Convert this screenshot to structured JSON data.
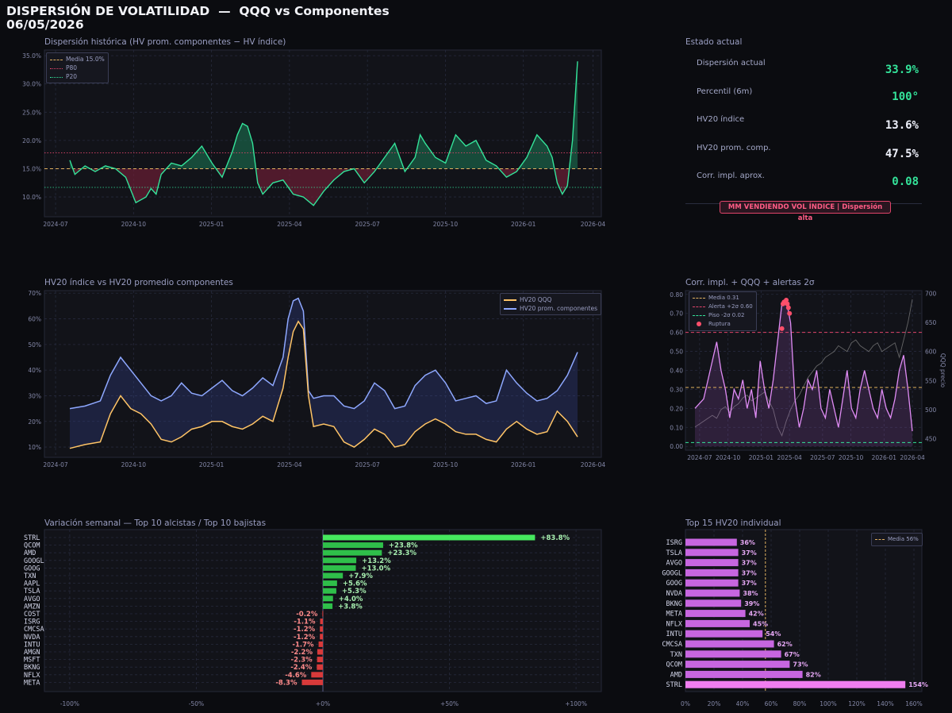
{
  "header": {
    "title": "DISPERSIÓN DE VOLATILIDAD  —  QQQ vs Componentes",
    "date": "06/05/2026"
  },
  "colors": {
    "green": "#34e39a",
    "red": "#e0446a",
    "blue": "#8ea8ff",
    "orange": "#ffc466",
    "purple": "#c766e0",
    "pink": "#f07ef0",
    "barGreen": "#2fbf4a",
    "barRed": "#d83a3a"
  },
  "panels": {
    "dispersion": {
      "title": "Dispersión histórica  (HV prom. componentes − HV índice)"
    },
    "estado": {
      "title": "Estado actual"
    },
    "hv20": {
      "title": "HV20 índice vs HV20 promedio componentes"
    },
    "corr": {
      "title": "Corr. impl. + QQQ + alertas 2σ"
    },
    "weekly": {
      "title": "Variación semanal  —  Top 10 alcistas / Top 10 bajistas"
    },
    "top15": {
      "title": "Top 15 HV20 individual"
    }
  },
  "estado": {
    "rows": [
      {
        "label": "Dispersión actual",
        "value": "33.9%",
        "color": "#34e39a"
      },
      {
        "label": "Percentil (6m)",
        "value": "100°",
        "color": "#34e39a"
      },
      {
        "label": "HV20 índice",
        "value": "13.6%",
        "color": "#eef0fa"
      },
      {
        "label": "HV20 prom. comp.",
        "value": "47.5%",
        "color": "#eef0fa"
      },
      {
        "label": "Corr. impl. aprox.",
        "value": "0.08",
        "color": "#34e39a"
      }
    ],
    "badge": "MM VENDIENDO VOL ÍNDICE  |  Dispersión alta"
  },
  "legends": {
    "dispersion": [
      "Media 15.0%",
      "P80",
      "P20"
    ],
    "hv20": [
      "HV20 QQQ",
      "HV20 prom. componentes"
    ],
    "corr": [
      "Media 0.31",
      "Alerta +2σ 0.60",
      "Piso -2σ 0.02",
      "Ruptura"
    ],
    "top15": [
      "Media 56%"
    ]
  },
  "chart_data": [
    {
      "type": "area",
      "id": "dispersion",
      "x_ticks": [
        "2024-07",
        "2024-10",
        "2025-01",
        "2025-04",
        "2025-07",
        "2025-10",
        "2026-01",
        "2026-04"
      ],
      "y_ticks": [
        "10.0%",
        "15.0%",
        "20.0%",
        "25.0%",
        "30.0%",
        "35.0%"
      ],
      "ylim": [
        6.5,
        36
      ],
      "mean": 15.0,
      "p80": 17.8,
      "p20": 11.7,
      "x_frac": [
        0,
        0.01,
        0.03,
        0.05,
        0.07,
        0.09,
        0.11,
        0.13,
        0.15,
        0.16,
        0.17,
        0.18,
        0.2,
        0.22,
        0.24,
        0.26,
        0.28,
        0.3,
        0.32,
        0.33,
        0.34,
        0.35,
        0.36,
        0.37,
        0.38,
        0.39,
        0.4,
        0.42,
        0.44,
        0.46,
        0.48,
        0.5,
        0.52,
        0.54,
        0.56,
        0.58,
        0.6,
        0.62,
        0.64,
        0.66,
        0.68,
        0.69,
        0.7,
        0.72,
        0.74,
        0.76,
        0.78,
        0.8,
        0.82,
        0.84,
        0.86,
        0.88,
        0.9,
        0.92,
        0.94,
        0.95,
        0.96,
        0.97,
        0.98,
        0.99,
        1.0
      ],
      "values": [
        16.5,
        14,
        15.5,
        14.5,
        15.5,
        15,
        13.5,
        9,
        10,
        11.5,
        10.5,
        14,
        16,
        15.5,
        17,
        19,
        16,
        13.5,
        18,
        21,
        23,
        22.5,
        19.5,
        12.5,
        10.5,
        11.5,
        12.5,
        13,
        10.5,
        10,
        8.5,
        11,
        13,
        14.5,
        15,
        12.5,
        14.5,
        17,
        19.5,
        14.5,
        17,
        21,
        19.5,
        17,
        16,
        21,
        19,
        20,
        16.5,
        15.5,
        13.5,
        14.5,
        17,
        21,
        19,
        17,
        12.5,
        10.5,
        12,
        20,
        34
      ]
    },
    {
      "type": "line",
      "id": "hv20",
      "x_ticks": [
        "2024-07",
        "2024-10",
        "2025-01",
        "2025-04",
        "2025-07",
        "2025-10",
        "2026-01",
        "2026-04"
      ],
      "y_ticks": [
        "10%",
        "20%",
        "30%",
        "40%",
        "50%",
        "60%",
        "70%"
      ],
      "ylim": [
        6,
        71
      ],
      "x_frac": [
        0,
        0.03,
        0.06,
        0.08,
        0.1,
        0.12,
        0.14,
        0.16,
        0.18,
        0.2,
        0.22,
        0.24,
        0.26,
        0.28,
        0.3,
        0.32,
        0.34,
        0.36,
        0.38,
        0.4,
        0.42,
        0.43,
        0.44,
        0.45,
        0.46,
        0.47,
        0.48,
        0.5,
        0.52,
        0.54,
        0.56,
        0.58,
        0.6,
        0.62,
        0.64,
        0.66,
        0.68,
        0.7,
        0.72,
        0.74,
        0.76,
        0.78,
        0.8,
        0.82,
        0.84,
        0.86,
        0.88,
        0.9,
        0.92,
        0.94,
        0.96,
        0.98,
        1.0
      ],
      "series": [
        {
          "name": "HV20 QQQ",
          "values": [
            9.5,
            11,
            12,
            23,
            30,
            25,
            23,
            19,
            13,
            12,
            14,
            17,
            18,
            20,
            20,
            18,
            17,
            19,
            22,
            20,
            33,
            45,
            55,
            59,
            56,
            30,
            18,
            19,
            18,
            12,
            10,
            13,
            17,
            15,
            10,
            11,
            16,
            19,
            21,
            19,
            16,
            15,
            15,
            13,
            12,
            17,
            20,
            17,
            15,
            16,
            24,
            20,
            14
          ]
        },
        {
          "name": "HV20 prom. componentes",
          "values": [
            25,
            26,
            28,
            38,
            45,
            40,
            35,
            30,
            28,
            30,
            35,
            31,
            30,
            33,
            36,
            32,
            30,
            33,
            37,
            34,
            45,
            60,
            67,
            68,
            63,
            32,
            29,
            30,
            30,
            26,
            25,
            28,
            35,
            32,
            25,
            26,
            34,
            38,
            40,
            35,
            28,
            29,
            30,
            27,
            28,
            40,
            35,
            31,
            28,
            29,
            32,
            38,
            47
          ]
        }
      ]
    },
    {
      "type": "line",
      "id": "corr",
      "x_ticks": [
        "2024-07",
        "2024-10",
        "2025-01",
        "2025-04",
        "2025-07",
        "2025-10",
        "2026-01",
        "2026-04"
      ],
      "y_ticks": [
        "0.00",
        "0.10",
        "0.20",
        "0.30",
        "0.40",
        "0.50",
        "0.60",
        "0.70",
        "0.80"
      ],
      "y2_ticks": [
        "450",
        "500",
        "550",
        "600",
        "650",
        "700"
      ],
      "ylim": [
        -0.02,
        0.82
      ],
      "y2lim": [
        430,
        705
      ],
      "y2label": "QQQ precio",
      "mean": 0.31,
      "alert": 0.6,
      "floor": 0.02,
      "x_frac": [
        0,
        0.04,
        0.08,
        0.1,
        0.12,
        0.14,
        0.16,
        0.18,
        0.2,
        0.22,
        0.24,
        0.26,
        0.28,
        0.3,
        0.32,
        0.34,
        0.36,
        0.38,
        0.4,
        0.42,
        0.44,
        0.46,
        0.48,
        0.5,
        0.52,
        0.54,
        0.56,
        0.58,
        0.6,
        0.62,
        0.64,
        0.66,
        0.68,
        0.7,
        0.72,
        0.74,
        0.76,
        0.78,
        0.8,
        0.82,
        0.84,
        0.86,
        0.88,
        0.9,
        0.92,
        0.94,
        0.96,
        0.98,
        1.0
      ],
      "series": [
        {
          "name": "Corr. impl.",
          "values": [
            0.2,
            0.25,
            0.45,
            0.55,
            0.4,
            0.3,
            0.15,
            0.3,
            0.25,
            0.35,
            0.2,
            0.3,
            0.15,
            0.45,
            0.3,
            0.2,
            0.35,
            0.55,
            0.75,
            0.77,
            0.65,
            0.25,
            0.1,
            0.2,
            0.35,
            0.3,
            0.4,
            0.2,
            0.15,
            0.3,
            0.2,
            0.1,
            0.25,
            0.4,
            0.2,
            0.15,
            0.3,
            0.4,
            0.3,
            0.2,
            0.15,
            0.3,
            0.2,
            0.15,
            0.25,
            0.4,
            0.48,
            0.3,
            0.08
          ]
        },
        {
          "name": "QQQ precio",
          "values": [
            470,
            480,
            490,
            485,
            500,
            505,
            495,
            505,
            510,
            520,
            525,
            515,
            520,
            525,
            530,
            515,
            500,
            470,
            455,
            480,
            500,
            515,
            525,
            540,
            555,
            565,
            575,
            580,
            590,
            595,
            600,
            610,
            605,
            600,
            615,
            620,
            610,
            605,
            600,
            610,
            615,
            600,
            605,
            610,
            615,
            590,
            620,
            650,
            690
          ]
        }
      ],
      "ruptura_x_frac": [
        0.4,
        0.405,
        0.41,
        0.415,
        0.42,
        0.425,
        0.43,
        0.435
      ],
      "ruptura_values": [
        0.62,
        0.75,
        0.76,
        0.76,
        0.77,
        0.75,
        0.73,
        0.7
      ]
    },
    {
      "type": "bar",
      "id": "weekly",
      "x_ticks": [
        "-100%",
        "-50%",
        "+0%",
        "+50%",
        "+100%"
      ],
      "xlim": [
        -110,
        110
      ],
      "categories": [
        "STRL",
        "QCOM",
        "AMD",
        "GOOGL",
        "GOOG",
        "TXN",
        "AAPL",
        "TSLA",
        "AVGO",
        "AMZN",
        "COST",
        "ISRG",
        "CMCSA",
        "NVDA",
        "INTU",
        "AMGN",
        "MSFT",
        "BKNG",
        "NFLX",
        "META"
      ],
      "values": [
        83.8,
        23.8,
        23.3,
        13.2,
        13.0,
        7.9,
        5.6,
        5.3,
        4.0,
        3.8,
        -0.2,
        -1.1,
        -1.2,
        -1.2,
        -1.7,
        -2.2,
        -2.3,
        -2.4,
        -4.6,
        -8.3
      ],
      "labels": [
        "+83.8%",
        "+23.8%",
        "+23.3%",
        "+13.2%",
        "+13.0%",
        "+7.9%",
        "+5.6%",
        "+5.3%",
        "+4.0%",
        "+3.8%",
        "-0.2%",
        "-1.1%",
        "-1.2%",
        "-1.2%",
        "-1.7%",
        "-2.2%",
        "-2.3%",
        "-2.4%",
        "-4.6%",
        "-8.3%"
      ]
    },
    {
      "type": "bar",
      "id": "top15",
      "x_ticks": [
        "0%",
        "20%",
        "40%",
        "60%",
        "80%",
        "100%",
        "120%",
        "140%",
        "160%"
      ],
      "xlim": [
        0,
        160
      ],
      "mean": 56,
      "categories": [
        "ISRG",
        "TSLA",
        "AVGO",
        "GOOGL",
        "GOOG",
        "NVDA",
        "BKNG",
        "META",
        "NFLX",
        "INTU",
        "CMCSA",
        "TXN",
        "QCOM",
        "AMD",
        "STRL"
      ],
      "values": [
        36,
        37,
        37,
        37,
        37,
        38,
        39,
        42,
        45,
        54,
        62,
        67,
        73,
        82,
        154
      ],
      "labels": [
        "36%",
        "37%",
        "37%",
        "37%",
        "37%",
        "38%",
        "39%",
        "42%",
        "45%",
        "54%",
        "62%",
        "67%",
        "73%",
        "82%",
        "154%"
      ]
    }
  ]
}
